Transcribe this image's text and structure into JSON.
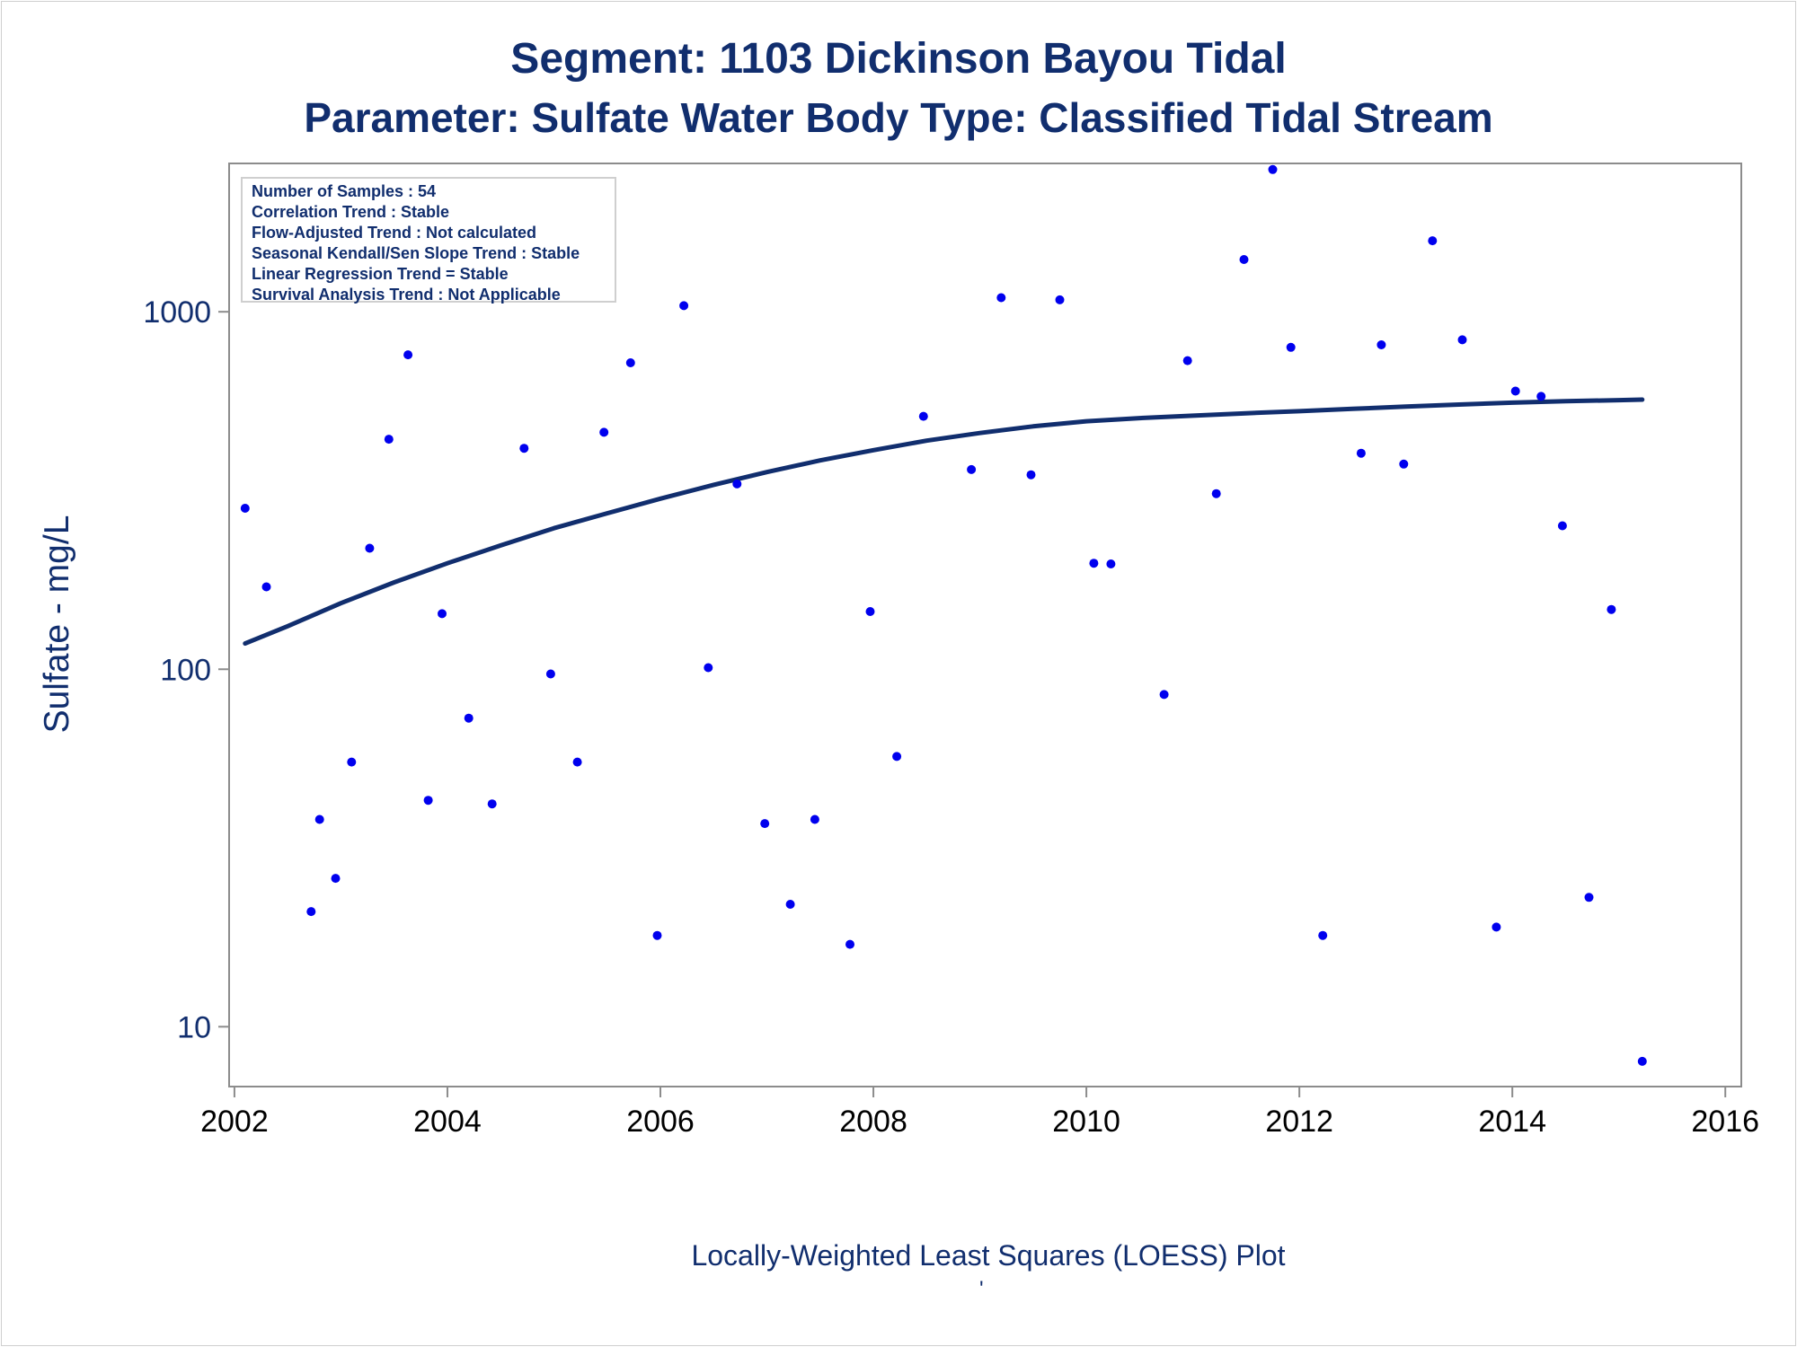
{
  "chart_data": {
    "type": "scatter",
    "title": "Segment: 1103  Dickinson Bayou Tidal",
    "subtitle": "Parameter: Sulfate   Water Body Type: Classified Tidal Stream",
    "ylabel": "Sulfate - mg/L",
    "xlabel": "",
    "footnote": "Locally-Weighted Least Squares (LOESS) Plot",
    "footnote2": "'",
    "y_scale": "log",
    "xlim": [
      2001.95,
      2016.15
    ],
    "ylim": [
      6.8,
      2600
    ],
    "x_ticks": [
      2002,
      2004,
      2006,
      2008,
      2010,
      2012,
      2014,
      2016
    ],
    "y_ticks": [
      10,
      100,
      1000
    ],
    "grid": false,
    "legend_position": "top-left",
    "legend_lines": [
      "Number of Samples : 54",
      "Correlation Trend : Stable",
      "Flow-Adjusted Trend : Not calculated",
      "Seasonal Kendall/Sen Slope Trend : Stable",
      "Linear Regression Trend = Stable",
      "Survival Analysis Trend : Not Applicable"
    ],
    "colors": {
      "points": "#0000ee",
      "loess": "#112e6e",
      "text": "#112e6e",
      "axis": "#8c8c8c"
    },
    "series": [
      {
        "kind": "points",
        "points": [
          [
            2002.1,
            282
          ],
          [
            2002.3,
            170
          ],
          [
            2002.72,
            21
          ],
          [
            2002.8,
            38
          ],
          [
            2002.95,
            26
          ],
          [
            2003.1,
            55
          ],
          [
            2003.27,
            218
          ],
          [
            2003.45,
            440
          ],
          [
            2003.63,
            758
          ],
          [
            2003.82,
            43
          ],
          [
            2003.95,
            143
          ],
          [
            2004.2,
            73
          ],
          [
            2004.42,
            42
          ],
          [
            2004.72,
            415
          ],
          [
            2004.97,
            97
          ],
          [
            2005.22,
            55
          ],
          [
            2005.47,
            460
          ],
          [
            2005.72,
            720
          ],
          [
            2005.97,
            18
          ],
          [
            2006.22,
            1040
          ],
          [
            2006.45,
            101
          ],
          [
            2006.72,
            330
          ],
          [
            2006.98,
            37
          ],
          [
            2007.22,
            22
          ],
          [
            2007.45,
            38
          ],
          [
            2007.78,
            17
          ],
          [
            2007.97,
            145
          ],
          [
            2008.22,
            57
          ],
          [
            2008.47,
            510
          ],
          [
            2008.92,
            362
          ],
          [
            2009.2,
            1095
          ],
          [
            2009.48,
            350
          ],
          [
            2009.75,
            1080
          ],
          [
            2010.07,
            198
          ],
          [
            2010.23,
            197
          ],
          [
            2010.73,
            85
          ],
          [
            2010.95,
            730
          ],
          [
            2011.22,
            310
          ],
          [
            2011.48,
            1400
          ],
          [
            2011.75,
            2500
          ],
          [
            2011.92,
            795
          ],
          [
            2012.22,
            18
          ],
          [
            2012.58,
            402
          ],
          [
            2012.77,
            808
          ],
          [
            2012.98,
            375
          ],
          [
            2013.25,
            1580
          ],
          [
            2013.53,
            835
          ],
          [
            2013.85,
            19
          ],
          [
            2014.03,
            600
          ],
          [
            2014.27,
            580
          ],
          [
            2014.47,
            252
          ],
          [
            2014.72,
            23
          ],
          [
            2014.93,
            147
          ],
          [
            2015.22,
            8
          ]
        ]
      },
      {
        "kind": "loess",
        "points": [
          [
            2002.1,
            118
          ],
          [
            2002.5,
            132
          ],
          [
            2003.0,
            153
          ],
          [
            2003.5,
            175
          ],
          [
            2004.0,
            198
          ],
          [
            2004.5,
            222
          ],
          [
            2005.0,
            248
          ],
          [
            2005.5,
            273
          ],
          [
            2006.0,
            300
          ],
          [
            2006.5,
            328
          ],
          [
            2007.0,
            356
          ],
          [
            2007.5,
            384
          ],
          [
            2008.0,
            410
          ],
          [
            2008.5,
            436
          ],
          [
            2009.0,
            458
          ],
          [
            2009.5,
            478
          ],
          [
            2010.0,
            494
          ],
          [
            2010.5,
            504
          ],
          [
            2011.0,
            512
          ],
          [
            2011.5,
            520
          ],
          [
            2012.0,
            527
          ],
          [
            2012.5,
            535
          ],
          [
            2013.0,
            543
          ],
          [
            2013.5,
            550
          ],
          [
            2014.0,
            557
          ],
          [
            2014.5,
            562
          ],
          [
            2015.0,
            566
          ],
          [
            2015.22,
            568
          ]
        ]
      }
    ]
  }
}
